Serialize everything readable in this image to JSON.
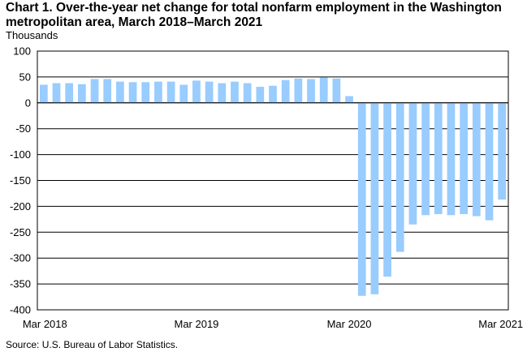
{
  "title": "Chart 1. Over-the-year net change for total nonfarm employment in the Washington metropolitan area, March 2018–March 2021",
  "unit_label": "Thousands",
  "source": "Source: U.S. Bureau of Labor Statistics.",
  "colors": {
    "bar": "#99ccff",
    "grid": "#000000"
  },
  "chart_data": {
    "type": "bar",
    "title": "Chart 1. Over-the-year net change for total nonfarm employment in the Washington metropolitan area, March 2018–March 2021",
    "ylabel": "Thousands",
    "xlabel": "",
    "ylim": [
      -400,
      100
    ],
    "yticks": [
      100,
      50,
      0,
      -50,
      -100,
      -150,
      -200,
      -250,
      -300,
      -350,
      -400
    ],
    "grid": true,
    "categories": [
      "Mar 2018",
      "Apr 2018",
      "May 2018",
      "Jun 2018",
      "Jul 2018",
      "Aug 2018",
      "Sep 2018",
      "Oct 2018",
      "Nov 2018",
      "Dec 2018",
      "Jan 2019",
      "Feb 2019",
      "Mar 2019",
      "Apr 2019",
      "May 2019",
      "Jun 2019",
      "Jul 2019",
      "Aug 2019",
      "Sep 2019",
      "Oct 2019",
      "Nov 2019",
      "Dec 2019",
      "Jan 2020",
      "Feb 2020",
      "Mar 2020",
      "Apr 2020",
      "May 2020",
      "Jun 2020",
      "Jul 2020",
      "Aug 2020",
      "Sep 2020",
      "Oct 2020",
      "Nov 2020",
      "Dec 2020",
      "Jan 2021",
      "Feb 2021",
      "Mar 2021"
    ],
    "xtick_labels": [
      "Mar 2018",
      "Mar 2019",
      "Mar 2020",
      "Mar 2021"
    ],
    "values": [
      35,
      38,
      38,
      36,
      46,
      46,
      41,
      40,
      40,
      41,
      41,
      35,
      43,
      41,
      38,
      41,
      38,
      31,
      33,
      44,
      47,
      46,
      49,
      47,
      13,
      -373,
      -370,
      -336,
      -288,
      -235,
      -217,
      -215,
      -217,
      -215,
      -219,
      -227,
      -187
    ]
  }
}
